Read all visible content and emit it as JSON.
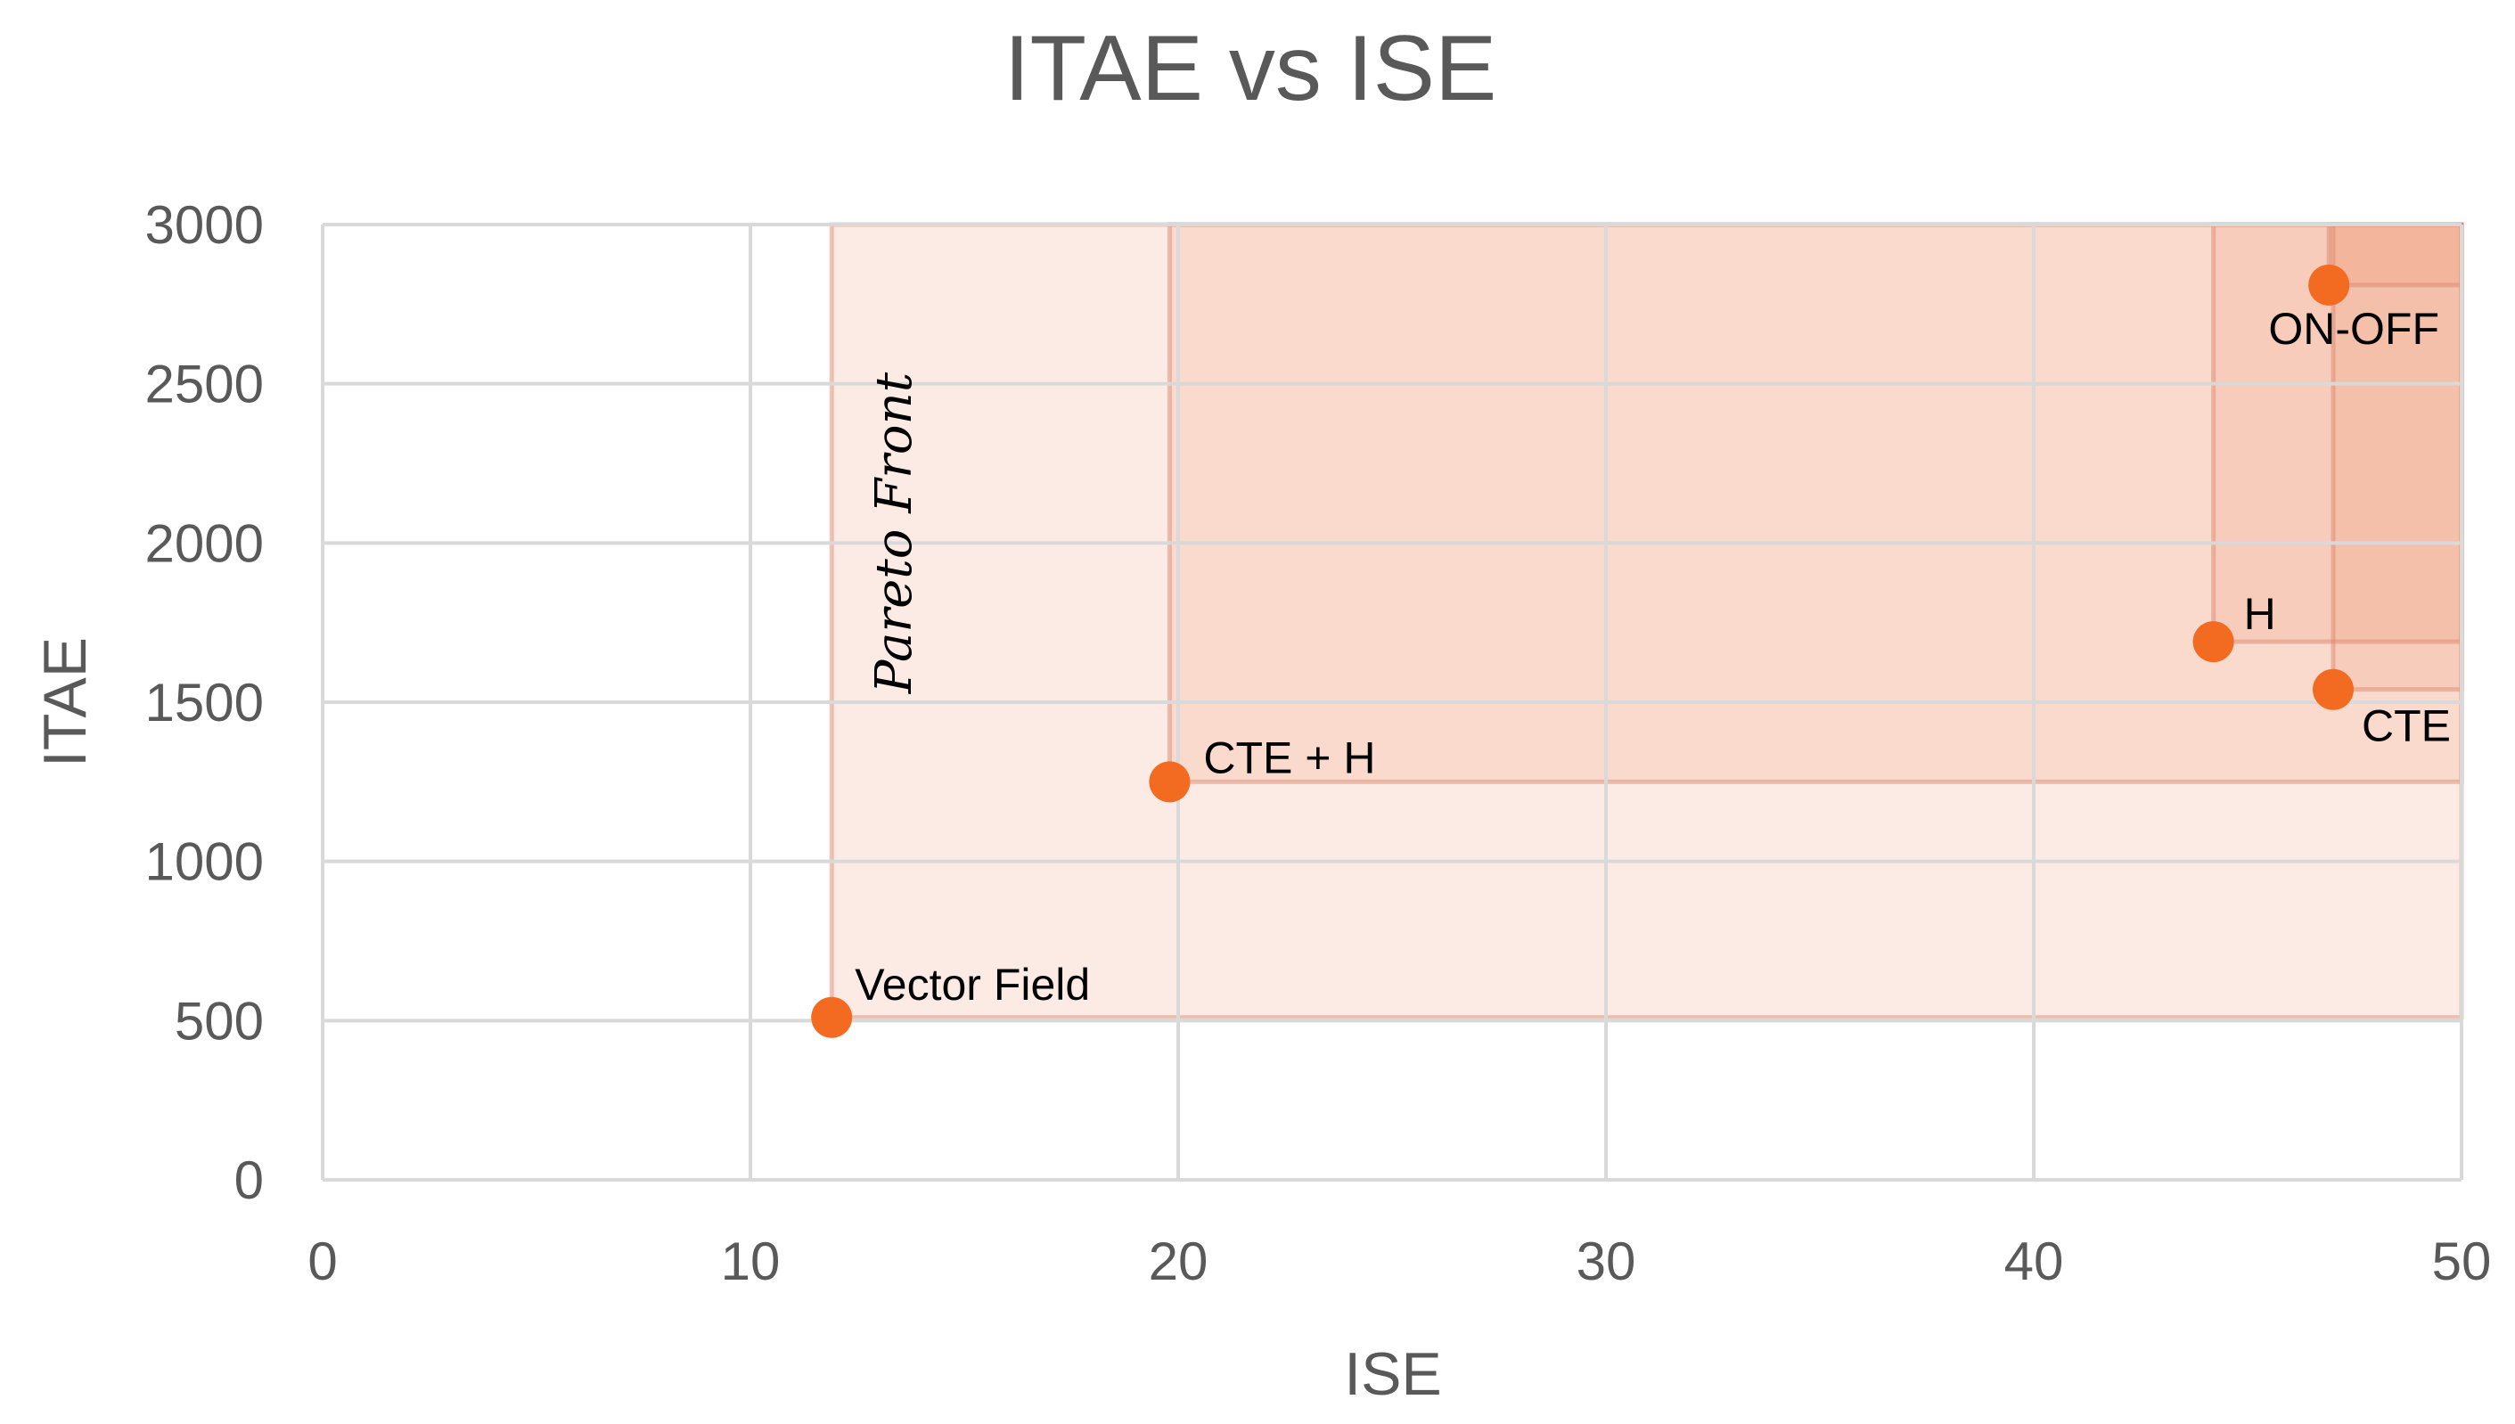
{
  "chart_data": {
    "type": "scatter",
    "title": "ITAE vs ISE",
    "xlabel": "ISE",
    "ylabel": "ITAE",
    "xlim": [
      0,
      50
    ],
    "ylim": [
      0,
      3000
    ],
    "x_ticks": [
      "0",
      "10",
      "20",
      "30",
      "40",
      "50"
    ],
    "y_ticks": [
      "0",
      "500",
      "1000",
      "1500",
      "2000",
      "2500",
      "3000"
    ],
    "grid": true,
    "legend": "none",
    "points": [
      {
        "label": "Vector Field",
        "x": 11.9,
        "y": 510
      },
      {
        "label": "CTE + H",
        "x": 19.8,
        "y": 1250
      },
      {
        "label": "H",
        "x": 44.2,
        "y": 1690
      },
      {
        "label": "CTE",
        "x": 47.0,
        "y": 1540
      },
      {
        "label": "ON-OFF",
        "x": 46.9,
        "y": 2810
      }
    ],
    "annotation": "Pareto Front",
    "colors": {
      "point": "#f26b21",
      "dominated_region": "#f08a5d",
      "grid": "#d9d9d9",
      "text": "#595959"
    }
  }
}
